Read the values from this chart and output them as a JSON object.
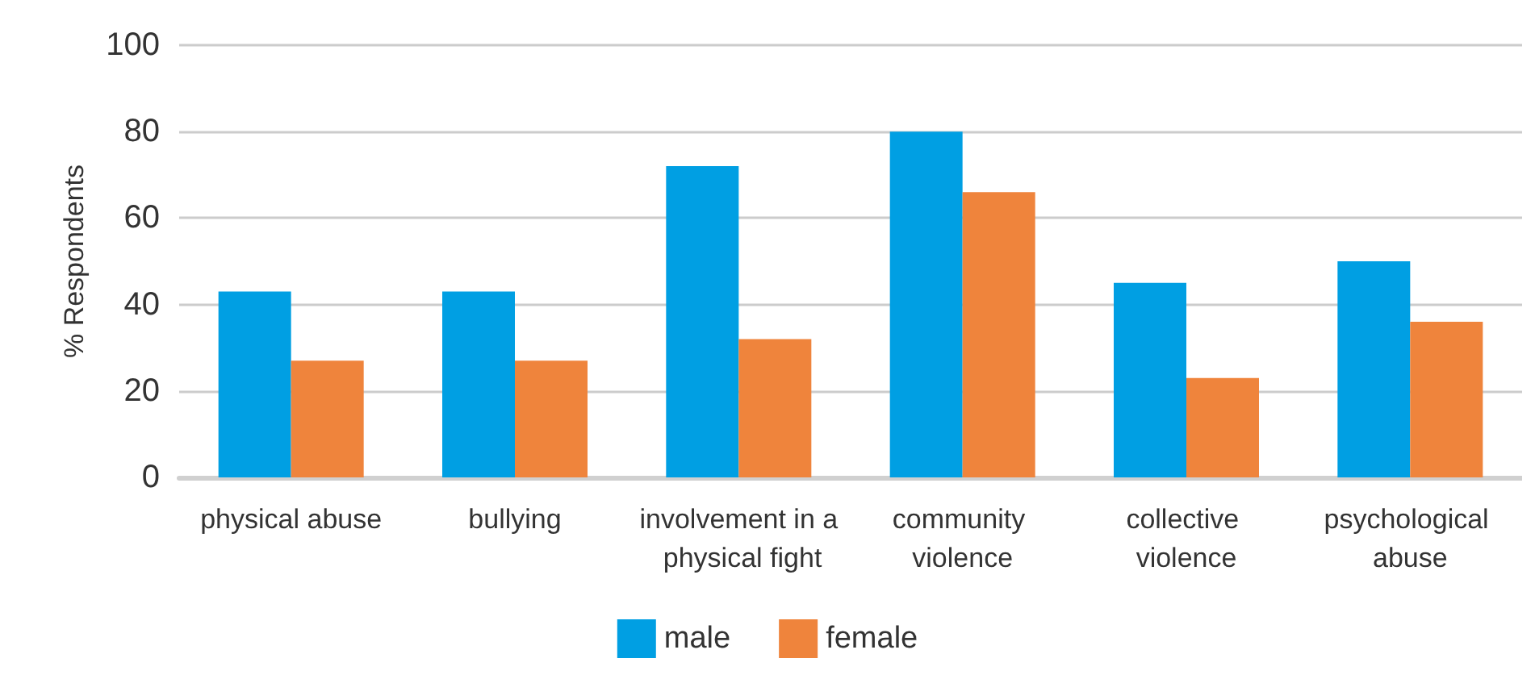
{
  "chart_data": {
    "type": "bar",
    "ylabel": "% Respondents",
    "categories": [
      "physical abuse",
      "bullying",
      "involvement in a physical fight",
      "community violence",
      "collective violence",
      "psychological abuse"
    ],
    "series": [
      {
        "name": "male",
        "color": "#009fe3",
        "values": [
          43,
          43,
          72,
          80,
          45,
          50
        ]
      },
      {
        "name": "female",
        "color": "#ef843c",
        "values": [
          27,
          27,
          32,
          66,
          23,
          36
        ]
      }
    ],
    "ylim": [
      0,
      100
    ],
    "yticks": [
      0,
      20,
      40,
      60,
      80,
      100
    ],
    "grid": "y",
    "legend": "bottom"
  }
}
